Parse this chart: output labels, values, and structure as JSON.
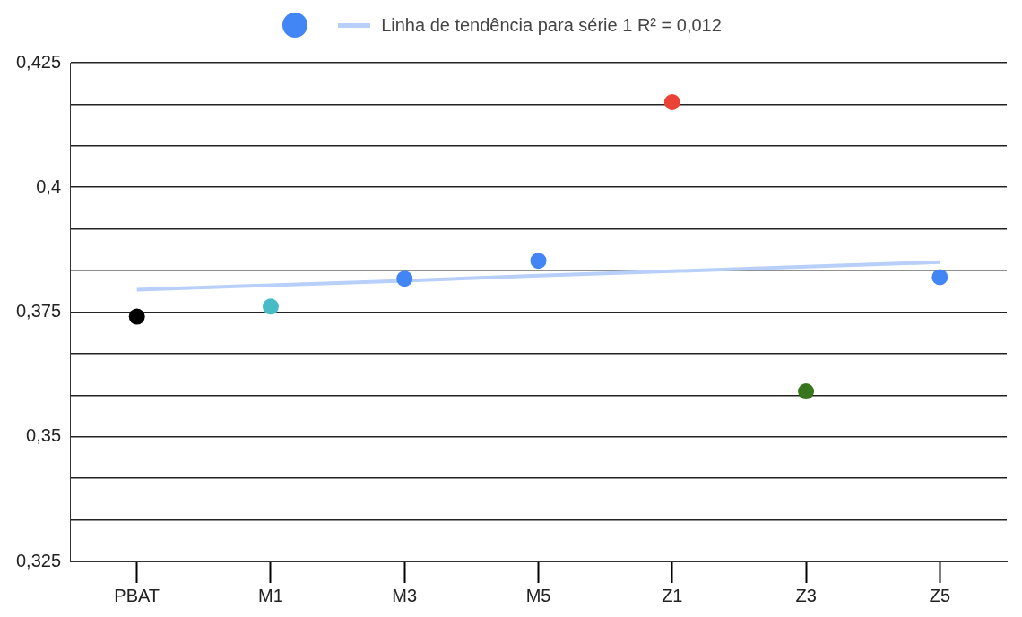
{
  "chart_data": {
    "type": "scatter",
    "categories": [
      "PBAT",
      "M1",
      "M3",
      "M5",
      "Z1",
      "Z3",
      "Z5"
    ],
    "series": [
      {
        "type": "scatter",
        "marker": "circle",
        "color": "#4285f4",
        "colors": [
          "#000000",
          "#46bdc6",
          "#4285f4",
          "#4285f4",
          "#ea4335",
          "#38761d",
          "#4285f4"
        ],
        "values": [
          0.3741,
          0.3761,
          0.3817,
          0.3853,
          0.4171,
          0.3591,
          0.382
        ]
      },
      {
        "type": "line",
        "name": "Linha de tendência para série 1 R² = 0,012",
        "color": "#b7cff9",
        "values": [
          0.3795,
          0.3804,
          0.3813,
          0.3823,
          0.3832,
          0.3841,
          0.385
        ]
      }
    ],
    "ylim": [
      0.325,
      0.425
    ],
    "yticks": [
      {
        "value": 0.325,
        "label": "0,325"
      },
      {
        "value": 0.33333,
        "label": null
      },
      {
        "value": 0.34167,
        "label": null
      },
      {
        "value": 0.35,
        "label": "0,35"
      },
      {
        "value": 0.35833,
        "label": null
      },
      {
        "value": 0.36667,
        "label": null
      },
      {
        "value": 0.375,
        "label": "0,375"
      },
      {
        "value": 0.38333,
        "label": null
      },
      {
        "value": 0.39167,
        "label": null
      },
      {
        "value": 0.4,
        "label": "0,4"
      },
      {
        "value": 0.40833,
        "label": null
      },
      {
        "value": 0.41667,
        "label": null
      },
      {
        "value": 0.425,
        "label": "0,425"
      }
    ],
    "grid": "y",
    "legend": "top"
  }
}
